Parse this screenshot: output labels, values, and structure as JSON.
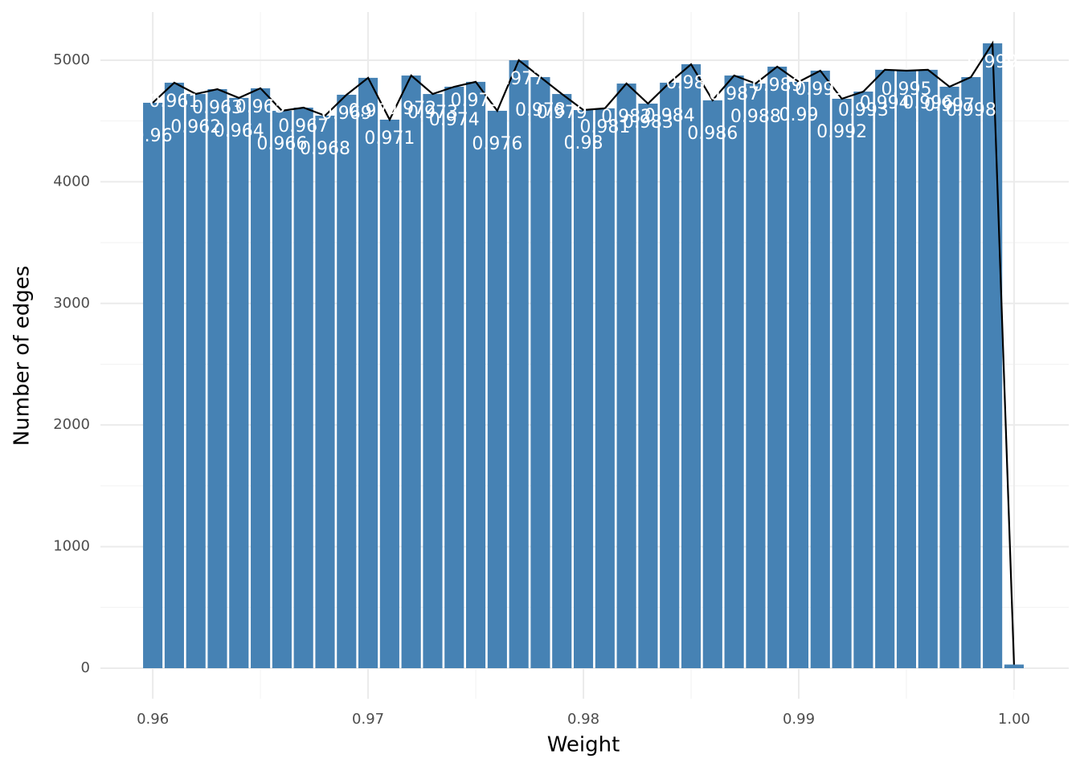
{
  "chart_data": {
    "type": "bar",
    "xlabel": "Weight",
    "ylabel": "Number of edges",
    "x": [
      0.96,
      0.961,
      0.962,
      0.963,
      0.964,
      0.965,
      0.966,
      0.967,
      0.968,
      0.969,
      0.97,
      0.971,
      0.972,
      0.973,
      0.974,
      0.975,
      0.976,
      0.977,
      0.978,
      0.979,
      0.98,
      0.981,
      0.982,
      0.983,
      0.984,
      0.985,
      0.986,
      0.987,
      0.988,
      0.989,
      0.99,
      0.991,
      0.992,
      0.993,
      0.994,
      0.995,
      0.996,
      0.997,
      0.998,
      0.999,
      1.0
    ],
    "values": [
      4650,
      4815,
      4722,
      4762,
      4690,
      4769,
      4584,
      4610,
      4544,
      4716,
      4855,
      4511,
      4874,
      4722,
      4782,
      4822,
      4584,
      5000,
      4861,
      4722,
      4590,
      4604,
      4808,
      4643,
      4815,
      4967,
      4670,
      4874,
      4808,
      4947,
      4822,
      4914,
      4683,
      4742,
      4921,
      4914,
      4921,
      4782,
      4861,
      5139,
      30
    ],
    "color": "#4682b4",
    "line_color": "#000000",
    "label_color": "#ffffff",
    "xlim": [
      0.95757,
      1.00254
    ],
    "ylim": [
      -251,
      5396
    ],
    "xticks": [
      0.96,
      0.97,
      0.98,
      0.99,
      {
        "value": 1,
        "label": "1.00"
      }
    ],
    "yticks": [
      0,
      1000,
      2000,
      3000,
      4000,
      5000
    ],
    "grid": true
  }
}
